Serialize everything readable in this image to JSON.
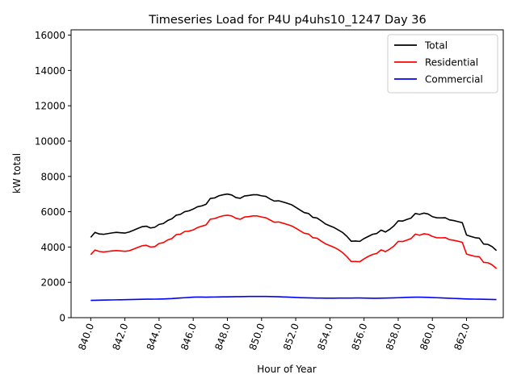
{
  "chart_data": {
    "type": "line",
    "title": "Timeseries Load for P4U p4uhs10_1247  Day 36",
    "xlabel": "Hour of Year",
    "ylabel": "kW total",
    "xlim": [
      838.85,
      864.15
    ],
    "ylim": [
      0,
      16300
    ],
    "xticks": [
      840,
      842,
      844,
      846,
      848,
      850,
      852,
      854,
      856,
      858,
      860,
      862
    ],
    "xtick_labels": [
      "840.0",
      "842.0",
      "844.0",
      "846.0",
      "848.0",
      "850.0",
      "852.0",
      "854.0",
      "856.0",
      "858.0",
      "860.0",
      "862.0"
    ],
    "yticks": [
      0,
      2000,
      4000,
      6000,
      8000,
      10000,
      12000,
      14000,
      16000
    ],
    "ytick_labels": [
      "0",
      "2000",
      "4000",
      "6000",
      "8000",
      "10000",
      "12000",
      "14000",
      "16000"
    ],
    "grid": false,
    "legend_position": "top-right",
    "x": [
      840,
      840.25,
      840.5,
      840.75,
      841,
      841.25,
      841.5,
      841.75,
      842,
      842.25,
      842.5,
      842.75,
      843,
      843.25,
      843.5,
      843.75,
      844,
      844.25,
      844.5,
      844.75,
      845,
      845.25,
      845.5,
      845.75,
      846,
      846.25,
      846.5,
      846.75,
      847,
      847.25,
      847.5,
      847.75,
      848,
      848.25,
      848.5,
      848.75,
      849,
      849.25,
      849.5,
      849.75,
      850,
      850.25,
      850.5,
      850.75,
      851,
      851.25,
      851.5,
      851.75,
      852,
      852.25,
      852.5,
      852.75,
      853,
      853.25,
      853.5,
      853.75,
      854,
      854.25,
      854.5,
      854.75,
      855,
      855.25,
      855.5,
      855.75,
      856,
      856.25,
      856.5,
      856.75,
      857,
      857.25,
      857.5,
      857.75,
      858,
      858.25,
      858.5,
      858.75,
      859,
      859.25,
      859.5,
      859.75,
      860,
      860.25,
      860.5,
      860.75,
      861,
      861.25,
      861.5,
      861.75,
      862,
      862.25,
      862.5,
      862.75,
      863,
      863.25,
      863.5,
      863.75
    ],
    "series": [
      {
        "name": "Total",
        "color": "#000000",
        "values": [
          4550,
          4830,
          4740,
          4720,
          4760,
          4800,
          4830,
          4810,
          4790,
          4850,
          4950,
          5050,
          5150,
          5180,
          5080,
          5120,
          5280,
          5330,
          5500,
          5600,
          5800,
          5850,
          6000,
          6050,
          6150,
          6280,
          6330,
          6420,
          6750,
          6780,
          6900,
          6960,
          7000,
          6950,
          6800,
          6760,
          6890,
          6920,
          6960,
          6960,
          6900,
          6870,
          6720,
          6600,
          6620,
          6550,
          6480,
          6400,
          6250,
          6100,
          5950,
          5900,
          5680,
          5640,
          5480,
          5300,
          5200,
          5100,
          4960,
          4820,
          4600,
          4330,
          4340,
          4320,
          4480,
          4600,
          4720,
          4770,
          4960,
          4850,
          5000,
          5200,
          5480,
          5470,
          5560,
          5640,
          5900,
          5850,
          5920,
          5870,
          5720,
          5660,
          5650,
          5660,
          5540,
          5500,
          5440,
          5380,
          4680,
          4600,
          4530,
          4500,
          4170,
          4150,
          4020,
          3800
        ]
      },
      {
        "name": "Residential",
        "color": "#ff0000",
        "values": [
          3570,
          3830,
          3750,
          3720,
          3750,
          3780,
          3800,
          3780,
          3760,
          3790,
          3880,
          3980,
          4070,
          4100,
          4000,
          4020,
          4200,
          4250,
          4400,
          4480,
          4700,
          4730,
          4880,
          4900,
          4970,
          5100,
          5180,
          5250,
          5580,
          5610,
          5700,
          5770,
          5800,
          5760,
          5630,
          5570,
          5700,
          5720,
          5760,
          5760,
          5700,
          5660,
          5530,
          5400,
          5420,
          5350,
          5280,
          5200,
          5070,
          4920,
          4780,
          4740,
          4530,
          4500,
          4330,
          4180,
          4080,
          3980,
          3850,
          3680,
          3450,
          3180,
          3180,
          3170,
          3330,
          3470,
          3580,
          3640,
          3840,
          3740,
          3880,
          4060,
          4320,
          4310,
          4390,
          4480,
          4730,
          4670,
          4750,
          4720,
          4600,
          4530,
          4520,
          4530,
          4420,
          4380,
          4330,
          4270,
          3600,
          3530,
          3470,
          3450,
          3130,
          3110,
          2990,
          2780
        ]
      },
      {
        "name": "Commercial",
        "color": "#0000ff",
        "values": [
          980,
          985,
          990,
          995,
          1000,
          1005,
          1010,
          1015,
          1020,
          1025,
          1030,
          1035,
          1040,
          1045,
          1048,
          1050,
          1055,
          1060,
          1070,
          1080,
          1100,
          1115,
          1130,
          1145,
          1160,
          1170,
          1165,
          1160,
          1165,
          1170,
          1175,
          1180,
          1180,
          1185,
          1190,
          1190,
          1195,
          1200,
          1200,
          1200,
          1200,
          1200,
          1195,
          1190,
          1185,
          1175,
          1165,
          1155,
          1145,
          1135,
          1125,
          1120,
          1115,
          1110,
          1108,
          1105,
          1105,
          1105,
          1108,
          1110,
          1110,
          1112,
          1115,
          1115,
          1110,
          1105,
          1100,
          1100,
          1105,
          1110,
          1115,
          1120,
          1130,
          1140,
          1150,
          1155,
          1160,
          1160,
          1155,
          1150,
          1140,
          1130,
          1120,
          1110,
          1100,
          1090,
          1080,
          1070,
          1060,
          1055,
          1050,
          1045,
          1040,
          1035,
          1030,
          1025
        ]
      }
    ]
  }
}
